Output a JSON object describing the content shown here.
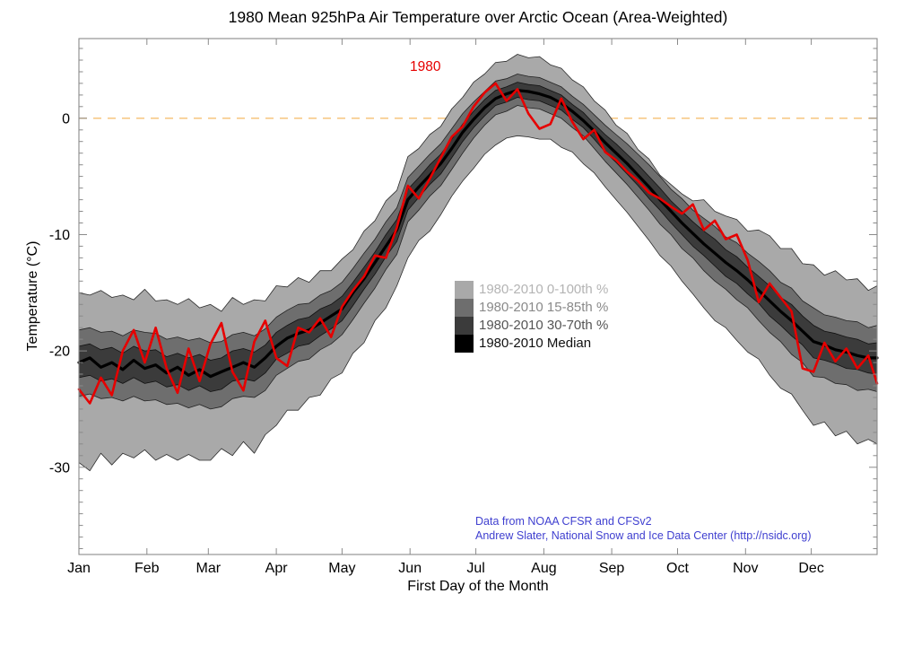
{
  "page": {
    "background": "#ffffff"
  },
  "chart_data": {
    "type": "area",
    "title": "1980 Mean 925hPa Air Temperature over Arctic Ocean (Area-Weighted)",
    "xlabel": "First Day of the Month",
    "ylabel": "Temperature (°C)",
    "x_unit": "day_of_year",
    "xlim": [
      1,
      365
    ],
    "ylim": [
      -37.5,
      6.85
    ],
    "grid": "off",
    "axis_color": "#8a8a8a",
    "tick_label_color": "#000000",
    "y_major_ticks": [
      0,
      -10,
      -20,
      -30
    ],
    "y_minor_tick_step": 1,
    "x_ticks": {
      "days": [
        1,
        32,
        60,
        91,
        121,
        152,
        182,
        213,
        244,
        274,
        305,
        335
      ],
      "labels": [
        "Jan",
        "Feb",
        "Mar",
        "Apr",
        "May",
        "Jun",
        "Jul",
        "Aug",
        "Sep",
        "Oct",
        "Nov",
        "Dec"
      ]
    },
    "zero_line": {
      "value": 0,
      "color": "#f6c173",
      "style": "dashed"
    },
    "annotations": {
      "series_label": {
        "text": "1980",
        "color": "#e60000"
      },
      "credit_line1": "Data from NOAA CFSR and CFSv2",
      "credit_line2": "Andrew Slater, National Snow and Ice Data Center (http://nsidc.org)",
      "credit_color": "#4040d0"
    },
    "legend": {
      "position": "center",
      "items": [
        {
          "label": "1980-2010 0-100th %",
          "swatch": "#a9a9a9",
          "text_color": "#b4b4b4"
        },
        {
          "label": "1980-2010 15-85th %",
          "swatch": "#6e6e6e",
          "text_color": "#8a8a8a"
        },
        {
          "label": "1980-2010 30-70th %",
          "swatch": "#3b3b3b",
          "text_color": "#555555"
        },
        {
          "label": "1980-2010 Median",
          "swatch": "#000000",
          "text_color": "#111111"
        }
      ]
    },
    "days": [
      1,
      6,
      11,
      16,
      21,
      26,
      31,
      36,
      41,
      46,
      51,
      56,
      61,
      66,
      71,
      76,
      81,
      86,
      91,
      96,
      101,
      106,
      111,
      116,
      121,
      126,
      131,
      136,
      141,
      146,
      151,
      156,
      161,
      166,
      171,
      176,
      181,
      186,
      191,
      196,
      201,
      206,
      211,
      216,
      221,
      226,
      231,
      236,
      241,
      246,
      251,
      256,
      261,
      266,
      271,
      276,
      281,
      286,
      291,
      296,
      301,
      306,
      311,
      316,
      321,
      326,
      331,
      336,
      341,
      346,
      351,
      356,
      361,
      365
    ],
    "series": [
      {
        "name": "1980-2010 0-100th %",
        "role": "band",
        "fill": "#a9a9a9",
        "edge": "#2b2b2b",
        "lower": [
          -29.6,
          -30.3,
          -28.8,
          -29.8,
          -28.8,
          -29.2,
          -28.5,
          -29.4,
          -28.9,
          -29.4,
          -28.9,
          -29.4,
          -29.4,
          -28.4,
          -29.0,
          -27.8,
          -28.8,
          -27.2,
          -26.4,
          -25.1,
          -25.1,
          -24.0,
          -23.8,
          -22.4,
          -21.9,
          -20.2,
          -19.3,
          -17.4,
          -16.3,
          -14.4,
          -12.0,
          -10.5,
          -9.7,
          -8.3,
          -6.7,
          -5.4,
          -4.3,
          -3.1,
          -2.3,
          -1.7,
          -1.5,
          -1.6,
          -1.8,
          -1.8,
          -2.5,
          -2.9,
          -3.9,
          -4.7,
          -5.9,
          -7.0,
          -8.1,
          -9.3,
          -10.5,
          -11.8,
          -12.7,
          -14.0,
          -15.1,
          -16.3,
          -17.4,
          -18.0,
          -19.1,
          -20.1,
          -20.7,
          -22.1,
          -23.2,
          -23.7,
          -25.1,
          -26.4,
          -26.1,
          -27.3,
          -26.9,
          -28.0,
          -27.6,
          -28.0
        ],
        "upper": [
          -15.0,
          -15.2,
          -14.8,
          -15.4,
          -15.2,
          -15.6,
          -14.7,
          -15.7,
          -15.6,
          -16.0,
          -15.5,
          -16.3,
          -16.0,
          -16.6,
          -15.4,
          -16.0,
          -15.6,
          -15.7,
          -14.4,
          -14.5,
          -13.7,
          -14.1,
          -13.1,
          -13.1,
          -12.1,
          -11.3,
          -9.7,
          -8.8,
          -7.1,
          -6.2,
          -3.3,
          -2.6,
          -1.4,
          -0.7,
          0.8,
          1.8,
          3.1,
          3.8,
          4.8,
          4.9,
          5.5,
          5.2,
          5.3,
          4.6,
          4.3,
          3.3,
          2.7,
          1.5,
          0.7,
          -0.6,
          -1.3,
          -2.7,
          -3.5,
          -4.9,
          -5.7,
          -6.5,
          -7.1,
          -7.0,
          -8.0,
          -8.4,
          -8.7,
          -9.7,
          -9.6,
          -10.1,
          -11.2,
          -11.2,
          -12.5,
          -12.6,
          -13.5,
          -13.1,
          -13.9,
          -13.8,
          -14.8,
          -14.4
        ]
      },
      {
        "name": "1980-2010 15-85th %",
        "role": "band",
        "fill": "#6e6e6e",
        "edge": "#222222",
        "lower": [
          -23.9,
          -23.7,
          -24.1,
          -24.0,
          -24.3,
          -23.9,
          -24.3,
          -24.2,
          -24.6,
          -24.5,
          -24.9,
          -24.6,
          -25.0,
          -24.8,
          -24.1,
          -23.9,
          -24.0,
          -23.4,
          -22.1,
          -21.5,
          -20.9,
          -20.7,
          -19.9,
          -19.4,
          -18.6,
          -17.3,
          -15.9,
          -14.6,
          -13.0,
          -11.7,
          -8.9,
          -7.9,
          -6.7,
          -5.8,
          -4.4,
          -3.0,
          -1.7,
          -0.6,
          0.3,
          0.6,
          1.1,
          0.9,
          0.8,
          0.4,
          0.0,
          -0.8,
          -1.5,
          -2.6,
          -3.7,
          -4.7,
          -5.7,
          -6.8,
          -7.9,
          -9.1,
          -10.0,
          -11.2,
          -12.0,
          -13.1,
          -14.0,
          -14.7,
          -15.6,
          -16.3,
          -17.4,
          -18.4,
          -19.2,
          -20.3,
          -21.0,
          -22.2,
          -22.3,
          -22.8,
          -22.9,
          -23.4,
          -23.3,
          -23.5
        ],
        "upper": [
          -18.2,
          -18.0,
          -18.4,
          -18.3,
          -18.7,
          -18.2,
          -18.4,
          -18.5,
          -19.0,
          -18.8,
          -19.1,
          -18.9,
          -19.3,
          -19.2,
          -18.6,
          -18.4,
          -18.7,
          -18.1,
          -17.1,
          -16.5,
          -16.0,
          -15.9,
          -15.2,
          -14.8,
          -14.1,
          -12.9,
          -11.6,
          -10.4,
          -8.9,
          -7.7,
          -5.1,
          -4.1,
          -3.1,
          -2.2,
          -0.9,
          0.4,
          1.4,
          2.3,
          3.2,
          3.4,
          3.8,
          3.6,
          3.5,
          3.1,
          2.7,
          1.9,
          1.2,
          0.3,
          -0.6,
          -1.4,
          -2.2,
          -3.1,
          -4.0,
          -5.0,
          -6.1,
          -6.9,
          -7.9,
          -8.6,
          -9.3,
          -10.2,
          -10.7,
          -11.6,
          -12.3,
          -13.1,
          -14.1,
          -14.6,
          -15.7,
          -16.3,
          -16.9,
          -17.1,
          -17.4,
          -17.5,
          -18.0,
          -17.8
        ]
      },
      {
        "name": "1980-2010 30-70th %",
        "role": "band",
        "fill": "#3b3b3b",
        "edge": "#111111",
        "lower": [
          -22.3,
          -22.1,
          -22.6,
          -22.4,
          -22.8,
          -22.3,
          -22.8,
          -22.6,
          -23.1,
          -22.9,
          -23.4,
          -23.0,
          -23.5,
          -23.3,
          -22.6,
          -22.4,
          -22.6,
          -21.9,
          -20.7,
          -20.2,
          -19.6,
          -19.4,
          -18.7,
          -18.1,
          -17.4,
          -16.1,
          -14.7,
          -13.4,
          -11.9,
          -10.6,
          -7.9,
          -6.8,
          -5.7,
          -4.8,
          -3.4,
          -2.0,
          -0.8,
          0.2,
          1.1,
          1.4,
          1.8,
          1.6,
          1.5,
          1.1,
          0.7,
          -0.1,
          -0.8,
          -1.8,
          -2.9,
          -3.8,
          -4.8,
          -5.8,
          -6.9,
          -7.9,
          -9.0,
          -10.0,
          -11.0,
          -11.8,
          -12.7,
          -13.6,
          -14.2,
          -15.1,
          -15.9,
          -17.0,
          -17.8,
          -18.7,
          -19.5,
          -20.6,
          -20.8,
          -21.1,
          -21.5,
          -21.6,
          -21.9,
          -22.0
        ],
        "upper": [
          -19.6,
          -19.4,
          -19.9,
          -19.7,
          -20.2,
          -19.6,
          -20.0,
          -19.9,
          -20.5,
          -20.2,
          -20.6,
          -20.3,
          -20.8,
          -20.6,
          -20.0,
          -19.8,
          -20.1,
          -19.5,
          -18.4,
          -17.8,
          -17.3,
          -17.1,
          -16.4,
          -16.0,
          -15.3,
          -14.1,
          -12.8,
          -11.5,
          -10.0,
          -8.7,
          -6.1,
          -5.1,
          -4.0,
          -3.1,
          -1.8,
          -0.5,
          0.6,
          1.6,
          2.4,
          2.7,
          3.1,
          2.9,
          2.8,
          2.4,
          2.0,
          1.2,
          0.5,
          -0.5,
          -1.4,
          -2.2,
          -3.1,
          -4.0,
          -5.0,
          -6.0,
          -7.1,
          -8.0,
          -8.9,
          -9.7,
          -10.4,
          -11.3,
          -11.9,
          -12.8,
          -13.6,
          -14.4,
          -15.4,
          -16.0,
          -17.0,
          -17.8,
          -18.3,
          -18.5,
          -18.8,
          -19.0,
          -19.4,
          -19.3
        ]
      },
      {
        "name": "1980-2010 Median",
        "role": "line",
        "color": "#000000",
        "width": 3.2,
        "values": [
          -21.0,
          -20.6,
          -21.4,
          -21.0,
          -21.6,
          -20.8,
          -21.5,
          -21.2,
          -21.9,
          -21.4,
          -22.1,
          -21.6,
          -22.2,
          -21.8,
          -21.4,
          -21.0,
          -21.4,
          -20.6,
          -19.6,
          -18.9,
          -18.5,
          -18.2,
          -17.6,
          -17.0,
          -16.4,
          -15.0,
          -13.8,
          -12.4,
          -11.0,
          -9.6,
          -7.0,
          -5.9,
          -4.9,
          -3.9,
          -2.6,
          -1.2,
          -0.1,
          0.9,
          1.7,
          2.1,
          2.4,
          2.3,
          2.1,
          1.8,
          1.3,
          0.6,
          -0.2,
          -1.1,
          -2.1,
          -3.0,
          -3.9,
          -4.9,
          -5.9,
          -7.0,
          -8.0,
          -9.0,
          -9.9,
          -10.8,
          -11.6,
          -12.4,
          -13.1,
          -13.9,
          -14.8,
          -15.7,
          -16.6,
          -17.4,
          -18.3,
          -19.2,
          -19.5,
          -19.9,
          -20.1,
          -20.4,
          -20.6,
          -20.6
        ]
      },
      {
        "name": "1980",
        "role": "line",
        "color": "#e60000",
        "width": 2.6,
        "values": [
          -23.3,
          -24.5,
          -22.3,
          -23.8,
          -20.0,
          -18.2,
          -21.0,
          -18.0,
          -21.5,
          -23.6,
          -19.8,
          -22.6,
          -19.4,
          -17.6,
          -21.8,
          -23.4,
          -19.2,
          -17.4,
          -20.6,
          -21.3,
          -18.0,
          -18.4,
          -17.2,
          -18.8,
          -16.2,
          -14.8,
          -13.6,
          -11.8,
          -12.0,
          -9.4,
          -5.8,
          -6.9,
          -5.2,
          -3.4,
          -1.6,
          -0.7,
          1.0,
          2.2,
          3.0,
          1.5,
          2.5,
          0.4,
          -0.9,
          -0.5,
          1.7,
          -0.3,
          -1.8,
          -1.0,
          -2.9,
          -3.6,
          -4.6,
          -5.4,
          -6.4,
          -6.9,
          -7.6,
          -8.2,
          -7.4,
          -9.6,
          -8.8,
          -10.4,
          -10.0,
          -12.2,
          -15.8,
          -14.2,
          -15.4,
          -16.6,
          -21.5,
          -21.8,
          -19.3,
          -20.9,
          -19.8,
          -21.5,
          -20.4,
          -22.8
        ]
      }
    ]
  }
}
